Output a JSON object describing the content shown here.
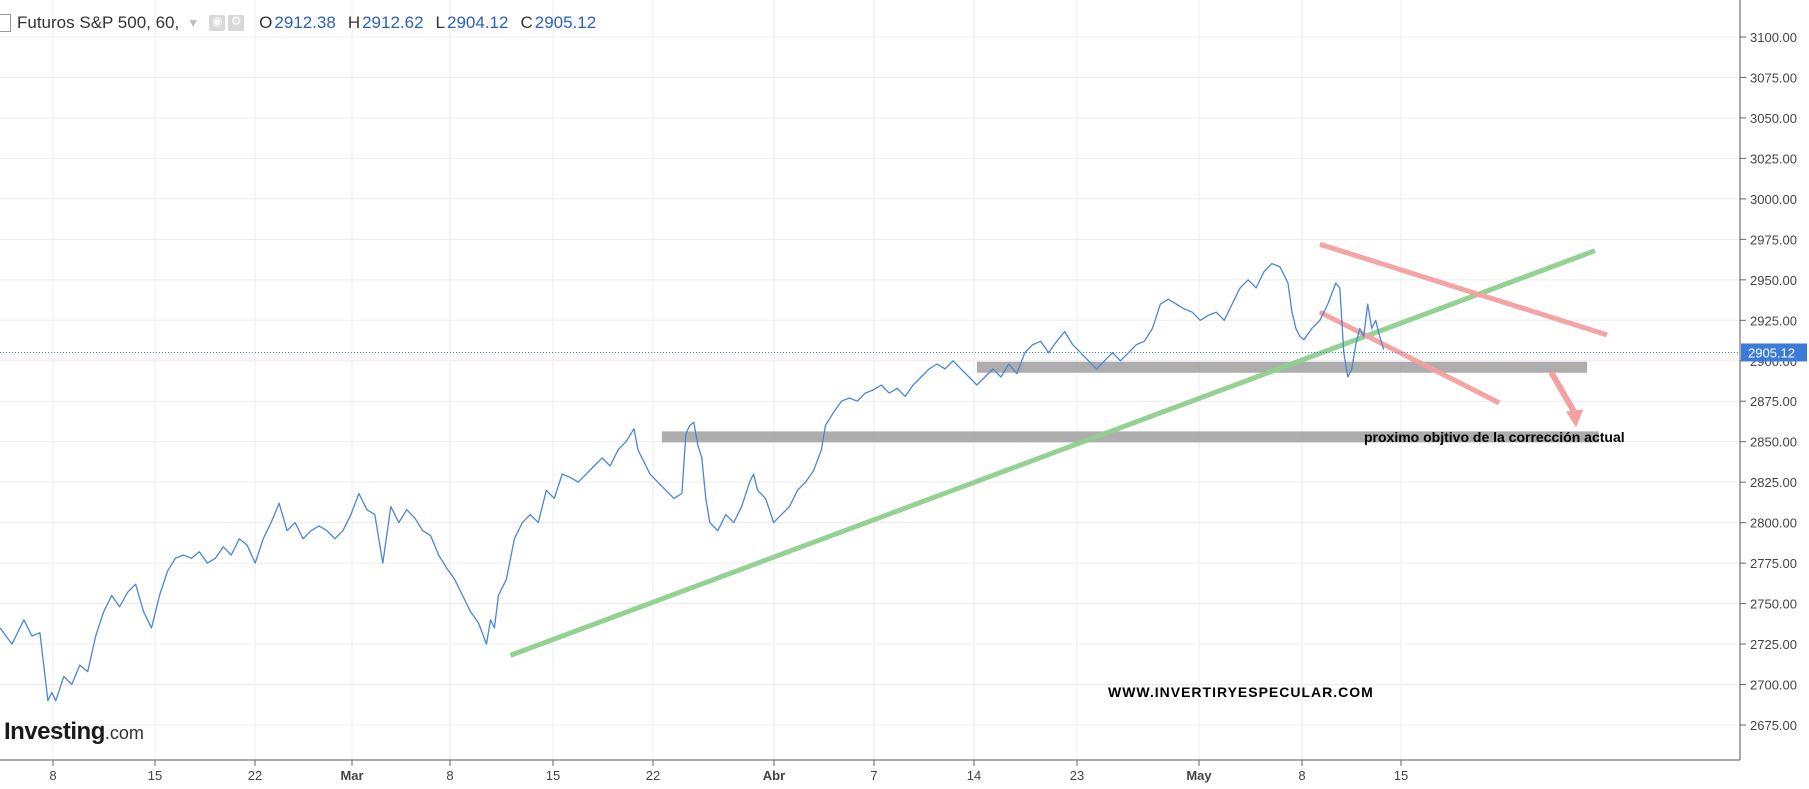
{
  "header": {
    "symbol": "Futuros S&P 500, 60,",
    "ohlc": [
      {
        "key": "O",
        "value": "2912.38"
      },
      {
        "key": "H",
        "value": "2912.62"
      },
      {
        "key": "L",
        "value": "2904.12"
      },
      {
        "key": "C",
        "value": "2905.12"
      }
    ]
  },
  "logo": {
    "main": "Investing",
    "suffix": ".com"
  },
  "colors": {
    "price_line": "#4a86d8",
    "trend_green": "#8fd08f",
    "channel_red": "#f5a0a0",
    "support_gray": "#a9a9a9",
    "price_label_bg": "#3d7bd9",
    "grid": "#ececec"
  },
  "chart_data": {
    "type": "line",
    "title": "Futuros S&P 500, 60,",
    "ylim": [
      2655,
      3110
    ],
    "y_ticks": [
      "3100.00",
      "3075.00",
      "3050.00",
      "3025.00",
      "3000.00",
      "2975.00",
      "2950.00",
      "2925.00",
      "2900.00",
      "2875.00",
      "2850.00",
      "2825.00",
      "2800.00",
      "2775.00",
      "2750.00",
      "2725.00",
      "2700.00",
      "2675.00"
    ],
    "x_ticks": [
      "8",
      "15",
      "22",
      "Mar",
      "8",
      "15",
      "22",
      "Abr",
      "7",
      "14",
      "23",
      "May",
      "8",
      "15"
    ],
    "last_price": 2905.12,
    "last_price_label": "2905.12",
    "series": [
      {
        "points": [
          [
            0,
            2735
          ],
          [
            3,
            2725
          ],
          [
            6,
            2740
          ],
          [
            8,
            2730
          ],
          [
            10,
            2732
          ],
          [
            12,
            2690
          ],
          [
            13,
            2695
          ],
          [
            14,
            2690
          ],
          [
            16,
            2705
          ],
          [
            18,
            2700
          ],
          [
            20,
            2712
          ],
          [
            22,
            2708
          ],
          [
            24,
            2730
          ],
          [
            26,
            2745
          ],
          [
            28,
            2755
          ],
          [
            30,
            2748
          ],
          [
            32,
            2757
          ],
          [
            34,
            2762
          ],
          [
            36,
            2745
          ],
          [
            37,
            2740
          ],
          [
            38,
            2735
          ],
          [
            40,
            2755
          ],
          [
            42,
            2770
          ],
          [
            44,
            2778
          ],
          [
            46,
            2780
          ],
          [
            48,
            2778
          ],
          [
            50,
            2782
          ],
          [
            52,
            2775
          ],
          [
            54,
            2778
          ],
          [
            56,
            2785
          ],
          [
            58,
            2780
          ],
          [
            60,
            2790
          ],
          [
            62,
            2786
          ],
          [
            64,
            2775
          ],
          [
            66,
            2790
          ],
          [
            68,
            2800
          ],
          [
            70,
            2812
          ],
          [
            72,
            2795
          ],
          [
            74,
            2800
          ],
          [
            76,
            2790
          ],
          [
            78,
            2795
          ],
          [
            80,
            2798
          ],
          [
            82,
            2795
          ],
          [
            84,
            2790
          ],
          [
            86,
            2795
          ],
          [
            88,
            2805
          ],
          [
            90,
            2818
          ],
          [
            92,
            2808
          ],
          [
            94,
            2805
          ],
          [
            96,
            2775
          ],
          [
            98,
            2810
          ],
          [
            100,
            2800
          ],
          [
            102,
            2808
          ],
          [
            104,
            2803
          ],
          [
            106,
            2795
          ],
          [
            108,
            2792
          ],
          [
            110,
            2780
          ],
          [
            112,
            2772
          ],
          [
            114,
            2765
          ],
          [
            116,
            2755
          ],
          [
            118,
            2745
          ],
          [
            120,
            2738
          ],
          [
            122,
            2725
          ],
          [
            123,
            2740
          ],
          [
            124,
            2735
          ],
          [
            125,
            2755
          ],
          [
            127,
            2765
          ],
          [
            129,
            2790
          ],
          [
            131,
            2800
          ],
          [
            133,
            2805
          ],
          [
            135,
            2800
          ],
          [
            137,
            2820
          ],
          [
            139,
            2815
          ],
          [
            141,
            2830
          ],
          [
            143,
            2828
          ],
          [
            145,
            2825
          ],
          [
            147,
            2830
          ],
          [
            149,
            2835
          ],
          [
            151,
            2840
          ],
          [
            153,
            2835
          ],
          [
            155,
            2845
          ],
          [
            157,
            2850
          ],
          [
            159,
            2858
          ],
          [
            160,
            2845
          ],
          [
            161,
            2840
          ],
          [
            163,
            2830
          ],
          [
            165,
            2825
          ],
          [
            167,
            2820
          ],
          [
            169,
            2815
          ],
          [
            171,
            2818
          ],
          [
            172,
            2855
          ],
          [
            173,
            2860
          ],
          [
            174,
            2862
          ],
          [
            175,
            2848
          ],
          [
            176,
            2840
          ],
          [
            177,
            2815
          ],
          [
            178,
            2800
          ],
          [
            180,
            2795
          ],
          [
            182,
            2805
          ],
          [
            184,
            2800
          ],
          [
            186,
            2810
          ],
          [
            188,
            2825
          ],
          [
            189,
            2830
          ],
          [
            190,
            2820
          ],
          [
            192,
            2815
          ],
          [
            194,
            2800
          ],
          [
            196,
            2805
          ],
          [
            198,
            2810
          ],
          [
            200,
            2820
          ],
          [
            202,
            2825
          ],
          [
            204,
            2832
          ],
          [
            206,
            2845
          ],
          [
            207,
            2860
          ],
          [
            209,
            2868
          ],
          [
            211,
            2875
          ],
          [
            213,
            2877
          ],
          [
            215,
            2875
          ],
          [
            217,
            2880
          ],
          [
            219,
            2882
          ],
          [
            221,
            2885
          ],
          [
            223,
            2880
          ],
          [
            225,
            2883
          ],
          [
            227,
            2878
          ],
          [
            229,
            2885
          ],
          [
            231,
            2890
          ],
          [
            233,
            2895
          ],
          [
            235,
            2898
          ],
          [
            237,
            2895
          ],
          [
            239,
            2900
          ],
          [
            241,
            2895
          ],
          [
            243,
            2890
          ],
          [
            245,
            2885
          ],
          [
            247,
            2890
          ],
          [
            249,
            2895
          ],
          [
            251,
            2890
          ],
          [
            253,
            2898
          ],
          [
            255,
            2892
          ],
          [
            257,
            2905
          ],
          [
            259,
            2910
          ],
          [
            261,
            2912
          ],
          [
            263,
            2905
          ],
          [
            265,
            2912
          ],
          [
            267,
            2918
          ],
          [
            269,
            2910
          ],
          [
            271,
            2905
          ],
          [
            273,
            2900
          ],
          [
            275,
            2895
          ],
          [
            277,
            2900
          ],
          [
            279,
            2905
          ],
          [
            281,
            2900
          ],
          [
            283,
            2905
          ],
          [
            285,
            2910
          ],
          [
            287,
            2912
          ],
          [
            289,
            2920
          ],
          [
            291,
            2935
          ],
          [
            293,
            2938
          ],
          [
            295,
            2935
          ],
          [
            297,
            2932
          ],
          [
            299,
            2930
          ],
          [
            301,
            2925
          ],
          [
            303,
            2928
          ],
          [
            305,
            2930
          ],
          [
            307,
            2925
          ],
          [
            309,
            2935
          ],
          [
            311,
            2945
          ],
          [
            313,
            2950
          ],
          [
            315,
            2945
          ],
          [
            317,
            2955
          ],
          [
            319,
            2960
          ],
          [
            321,
            2958
          ],
          [
            323,
            2948
          ],
          [
            324,
            2930
          ],
          [
            325,
            2920
          ],
          [
            326,
            2915
          ],
          [
            327,
            2913
          ],
          [
            329,
            2920
          ],
          [
            331,
            2925
          ],
          [
            333,
            2935
          ],
          [
            335,
            2948
          ],
          [
            336,
            2945
          ],
          [
            337,
            2905
          ],
          [
            338,
            2890
          ],
          [
            339,
            2895
          ],
          [
            340,
            2910
          ],
          [
            341,
            2920
          ],
          [
            342,
            2915
          ],
          [
            343,
            2935
          ],
          [
            344,
            2920
          ],
          [
            345,
            2925
          ],
          [
            346,
            2915
          ],
          [
            347,
            2907
          ]
        ]
      }
    ]
  },
  "annotations": {
    "target_text": "proximo objtivo de la corrección actual",
    "website": "WWW.INVERTIRYESPECULAR.COM",
    "green_trendline": {
      "from": [
        128,
        2718
      ],
      "to": [
        400,
        2968
      ]
    },
    "red_channel_upper": {
      "from": [
        331,
        2972
      ],
      "to": [
        403,
        2916
      ]
    },
    "red_channel_lower": {
      "from": [
        331,
        2930
      ],
      "to": [
        376,
        2874
      ]
    },
    "gray_band_upper": {
      "from": [
        245,
        2896
      ],
      "to": [
        398,
        2896
      ]
    },
    "gray_band_lower": {
      "from": [
        166,
        2853
      ],
      "to": [
        401,
        2853
      ]
    },
    "red_arrow": {
      "from": [
        389,
        2893
      ],
      "to": [
        395,
        2860
      ]
    }
  }
}
